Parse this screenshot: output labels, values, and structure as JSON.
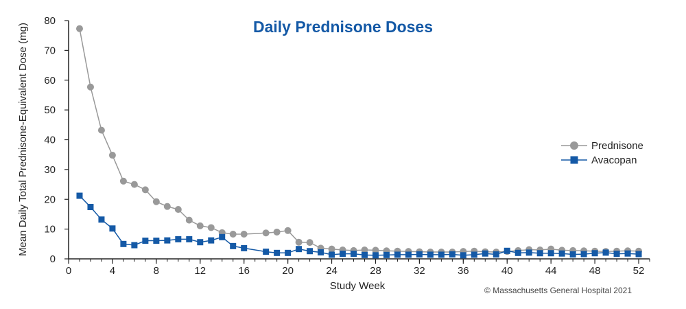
{
  "chart_data": {
    "type": "line",
    "title": "Daily Prednisone Doses",
    "xlabel": "Study Week",
    "ylabel": "Mean Daily Total Prednisone-Equivalent Dose (mg)",
    "xlim": [
      0,
      53
    ],
    "ylim": [
      0,
      80
    ],
    "xticks": [
      0,
      4,
      8,
      12,
      16,
      20,
      24,
      28,
      32,
      36,
      40,
      44,
      48,
      52
    ],
    "yticks": [
      0,
      10,
      20,
      30,
      40,
      50,
      60,
      70,
      80
    ],
    "grid": false,
    "legend_position": "right",
    "series": [
      {
        "name": "Prednisone",
        "color": "#999999",
        "marker": "circle",
        "x": [
          1,
          2,
          3,
          4,
          5,
          6,
          7,
          8,
          9,
          10,
          11,
          12,
          13,
          14,
          15,
          16,
          18,
          19,
          20,
          21,
          22,
          23,
          24,
          25,
          26,
          27,
          28,
          29,
          30,
          31,
          32,
          33,
          34,
          35,
          36,
          37,
          38,
          39,
          40,
          41,
          42,
          43,
          44,
          45,
          46,
          47,
          48,
          49,
          50,
          51,
          52
        ],
        "y": [
          77.3,
          57.7,
          43.2,
          34.8,
          26.1,
          25.0,
          23.2,
          19.2,
          17.6,
          16.6,
          13.0,
          11.1,
          10.5,
          8.8,
          8.3,
          8.3,
          8.7,
          9.0,
          9.5,
          5.6,
          5.5,
          3.6,
          3.3,
          3.0,
          2.8,
          3.0,
          2.9,
          2.7,
          2.6,
          2.5,
          2.4,
          2.3,
          2.3,
          2.3,
          2.5,
          2.6,
          2.4,
          2.3,
          2.5,
          2.8,
          3.1,
          3.0,
          3.3,
          2.9,
          2.8,
          2.7,
          2.6,
          2.5,
          2.6,
          2.7,
          2.6
        ]
      },
      {
        "name": "Avacopan",
        "color": "#1459a6",
        "marker": "square",
        "x": [
          1,
          2,
          3,
          4,
          5,
          6,
          7,
          8,
          9,
          10,
          11,
          12,
          13,
          14,
          15,
          16,
          18,
          19,
          20,
          21,
          22,
          23,
          24,
          25,
          26,
          27,
          28,
          29,
          30,
          31,
          32,
          33,
          34,
          35,
          36,
          37,
          38,
          39,
          40,
          41,
          42,
          43,
          44,
          45,
          46,
          47,
          48,
          49,
          50,
          51,
          52
        ],
        "y": [
          21.2,
          17.4,
          13.2,
          10.2,
          5.0,
          4.6,
          6.1,
          6.1,
          6.2,
          6.6,
          6.6,
          5.6,
          6.2,
          7.3,
          4.3,
          3.6,
          2.4,
          2.0,
          2.0,
          3.3,
          2.6,
          2.2,
          1.4,
          1.7,
          1.7,
          1.3,
          1.2,
          1.3,
          1.4,
          1.4,
          1.5,
          1.4,
          1.4,
          1.5,
          1.2,
          1.4,
          1.8,
          1.5,
          2.7,
          2.0,
          2.1,
          1.9,
          1.9,
          1.8,
          1.5,
          1.6,
          1.9,
          2.1,
          1.7,
          1.8,
          1.6
        ]
      }
    ]
  },
  "copyright": "© Massachusetts General Hospital 2021",
  "colors": {
    "title": "#1459a6",
    "axis": "#222222"
  }
}
